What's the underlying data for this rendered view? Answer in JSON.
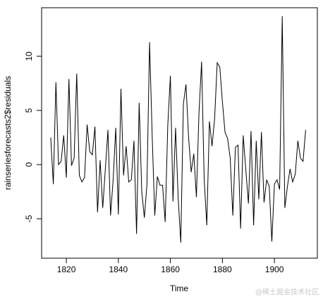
{
  "chart_data": {
    "type": "line",
    "x_label": "Time",
    "y_label": "rainseriesforecasts2$residuals",
    "x": [
      1814,
      1815,
      1816,
      1817,
      1818,
      1819,
      1820,
      1821,
      1822,
      1823,
      1824,
      1825,
      1826,
      1827,
      1828,
      1829,
      1830,
      1831,
      1832,
      1833,
      1834,
      1835,
      1836,
      1837,
      1838,
      1839,
      1840,
      1841,
      1842,
      1843,
      1844,
      1845,
      1846,
      1847,
      1848,
      1849,
      1850,
      1851,
      1852,
      1853,
      1854,
      1855,
      1856,
      1857,
      1858,
      1859,
      1860,
      1861,
      1862,
      1863,
      1864,
      1865,
      1866,
      1867,
      1868,
      1869,
      1870,
      1871,
      1872,
      1873,
      1874,
      1875,
      1876,
      1877,
      1878,
      1879,
      1880,
      1881,
      1882,
      1883,
      1884,
      1885,
      1886,
      1887,
      1888,
      1889,
      1890,
      1891,
      1892,
      1893,
      1894,
      1895,
      1896,
      1897,
      1898,
      1899,
      1900,
      1901,
      1902,
      1903,
      1904,
      1905,
      1906,
      1907,
      1908,
      1909,
      1910,
      1911,
      1912
    ],
    "values": [
      2.5,
      -1.8,
      7.6,
      0,
      0.3,
      2.7,
      -1.2,
      7.9,
      -0.1,
      0.6,
      8.4,
      -1,
      -1.6,
      -1.2,
      3.7,
      1.2,
      0.9,
      3.5,
      -4.4,
      0.4,
      -4,
      -0.4,
      3.2,
      -4.7,
      -1.4,
      3.4,
      -4.6,
      7,
      -1,
      1.7,
      -1.6,
      -1.4,
      2.2,
      -6.4,
      5.7,
      -2.5,
      -4.9,
      -1.8,
      11.3,
      2.7,
      -4.7,
      -1.1,
      -1.9,
      -1.9,
      -5.3,
      3.6,
      8.2,
      -3.4,
      3.4,
      -3.1,
      -7.2,
      5.6,
      7.4,
      2.5,
      -0.7,
      1,
      -3,
      4.8,
      9.5,
      -1.4,
      -5.6,
      4,
      1.7,
      4.2,
      9.4,
      9,
      5.8,
      3,
      2.4,
      0.6,
      -4.7,
      1.6,
      1.8,
      -5.9,
      2.7,
      -0.5,
      -3.6,
      3.1,
      -5.6,
      2.2,
      -3.2,
      3,
      -3.5,
      -1.4,
      -2,
      -7.1,
      -1.8,
      -1.4,
      -2.3,
      13.7,
      -4,
      -2,
      -0.4,
      -1.6,
      -0.9,
      2.2,
      0.6,
      0.3,
      3.2
    ],
    "color": "#000000",
    "xlim": [
      1810.5,
      1916.5
    ],
    "ylim": [
      -8.64,
      14.48
    ],
    "xticks": [
      1820,
      1840,
      1860,
      1880,
      1900
    ],
    "yticks": [
      -5,
      0,
      5,
      10
    ]
  },
  "watermark": "@稀土掘金技术社区"
}
